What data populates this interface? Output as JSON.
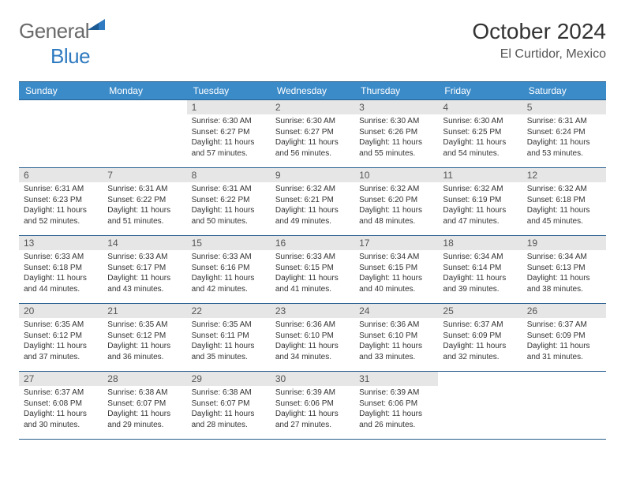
{
  "logo": {
    "general": "General",
    "blue": "Blue"
  },
  "title": "October 2024",
  "subtitle": "El Curtidor, Mexico",
  "colors": {
    "header_bg": "#3b8bc9",
    "header_border": "#285e8e",
    "daynum_bg": "#e6e6e6",
    "text": "#333333",
    "logo_gray": "#6a6a6a",
    "logo_blue": "#2f7ac0"
  },
  "day_names": [
    "Sunday",
    "Monday",
    "Tuesday",
    "Wednesday",
    "Thursday",
    "Friday",
    "Saturday"
  ],
  "weeks": [
    [
      null,
      null,
      {
        "n": "1",
        "sr": "6:30 AM",
        "ss": "6:27 PM",
        "dl": "11 hours and 57 minutes."
      },
      {
        "n": "2",
        "sr": "6:30 AM",
        "ss": "6:27 PM",
        "dl": "11 hours and 56 minutes."
      },
      {
        "n": "3",
        "sr": "6:30 AM",
        "ss": "6:26 PM",
        "dl": "11 hours and 55 minutes."
      },
      {
        "n": "4",
        "sr": "6:30 AM",
        "ss": "6:25 PM",
        "dl": "11 hours and 54 minutes."
      },
      {
        "n": "5",
        "sr": "6:31 AM",
        "ss": "6:24 PM",
        "dl": "11 hours and 53 minutes."
      }
    ],
    [
      {
        "n": "6",
        "sr": "6:31 AM",
        "ss": "6:23 PM",
        "dl": "11 hours and 52 minutes."
      },
      {
        "n": "7",
        "sr": "6:31 AM",
        "ss": "6:22 PM",
        "dl": "11 hours and 51 minutes."
      },
      {
        "n": "8",
        "sr": "6:31 AM",
        "ss": "6:22 PM",
        "dl": "11 hours and 50 minutes."
      },
      {
        "n": "9",
        "sr": "6:32 AM",
        "ss": "6:21 PM",
        "dl": "11 hours and 49 minutes."
      },
      {
        "n": "10",
        "sr": "6:32 AM",
        "ss": "6:20 PM",
        "dl": "11 hours and 48 minutes."
      },
      {
        "n": "11",
        "sr": "6:32 AM",
        "ss": "6:19 PM",
        "dl": "11 hours and 47 minutes."
      },
      {
        "n": "12",
        "sr": "6:32 AM",
        "ss": "6:18 PM",
        "dl": "11 hours and 45 minutes."
      }
    ],
    [
      {
        "n": "13",
        "sr": "6:33 AM",
        "ss": "6:18 PM",
        "dl": "11 hours and 44 minutes."
      },
      {
        "n": "14",
        "sr": "6:33 AM",
        "ss": "6:17 PM",
        "dl": "11 hours and 43 minutes."
      },
      {
        "n": "15",
        "sr": "6:33 AM",
        "ss": "6:16 PM",
        "dl": "11 hours and 42 minutes."
      },
      {
        "n": "16",
        "sr": "6:33 AM",
        "ss": "6:15 PM",
        "dl": "11 hours and 41 minutes."
      },
      {
        "n": "17",
        "sr": "6:34 AM",
        "ss": "6:15 PM",
        "dl": "11 hours and 40 minutes."
      },
      {
        "n": "18",
        "sr": "6:34 AM",
        "ss": "6:14 PM",
        "dl": "11 hours and 39 minutes."
      },
      {
        "n": "19",
        "sr": "6:34 AM",
        "ss": "6:13 PM",
        "dl": "11 hours and 38 minutes."
      }
    ],
    [
      {
        "n": "20",
        "sr": "6:35 AM",
        "ss": "6:12 PM",
        "dl": "11 hours and 37 minutes."
      },
      {
        "n": "21",
        "sr": "6:35 AM",
        "ss": "6:12 PM",
        "dl": "11 hours and 36 minutes."
      },
      {
        "n": "22",
        "sr": "6:35 AM",
        "ss": "6:11 PM",
        "dl": "11 hours and 35 minutes."
      },
      {
        "n": "23",
        "sr": "6:36 AM",
        "ss": "6:10 PM",
        "dl": "11 hours and 34 minutes."
      },
      {
        "n": "24",
        "sr": "6:36 AM",
        "ss": "6:10 PM",
        "dl": "11 hours and 33 minutes."
      },
      {
        "n": "25",
        "sr": "6:37 AM",
        "ss": "6:09 PM",
        "dl": "11 hours and 32 minutes."
      },
      {
        "n": "26",
        "sr": "6:37 AM",
        "ss": "6:09 PM",
        "dl": "11 hours and 31 minutes."
      }
    ],
    [
      {
        "n": "27",
        "sr": "6:37 AM",
        "ss": "6:08 PM",
        "dl": "11 hours and 30 minutes."
      },
      {
        "n": "28",
        "sr": "6:38 AM",
        "ss": "6:07 PM",
        "dl": "11 hours and 29 minutes."
      },
      {
        "n": "29",
        "sr": "6:38 AM",
        "ss": "6:07 PM",
        "dl": "11 hours and 28 minutes."
      },
      {
        "n": "30",
        "sr": "6:39 AM",
        "ss": "6:06 PM",
        "dl": "11 hours and 27 minutes."
      },
      {
        "n": "31",
        "sr": "6:39 AM",
        "ss": "6:06 PM",
        "dl": "11 hours and 26 minutes."
      },
      null,
      null
    ]
  ],
  "labels": {
    "sunrise": "Sunrise:",
    "sunset": "Sunset:",
    "daylight": "Daylight:"
  }
}
